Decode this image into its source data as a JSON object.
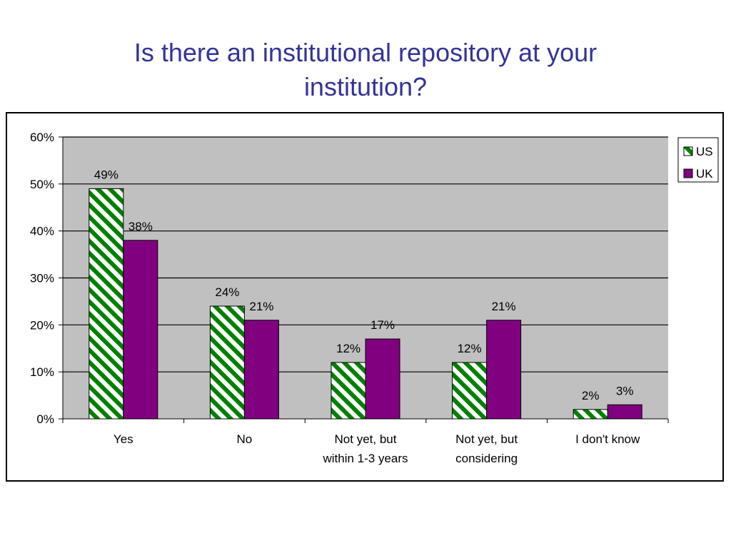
{
  "title_lines": [
    "Is there an institutional repository at your",
    "institution?"
  ],
  "chart_data": {
    "type": "bar",
    "title": "Is there an institutional repository at your institution?",
    "categories": [
      [
        "Yes"
      ],
      [
        "No"
      ],
      [
        "Not yet, but",
        "within 1-3 years"
      ],
      [
        "Not yet, but",
        "considering"
      ],
      [
        "I don't know"
      ]
    ],
    "series": [
      {
        "name": "US",
        "values": [
          49,
          24,
          12,
          12,
          2
        ],
        "labels": [
          "49%",
          "24%",
          "12%",
          "12%",
          "2%"
        ],
        "color": "#008000",
        "pattern": "diagonal-stripes"
      },
      {
        "name": "UK",
        "values": [
          38,
          21,
          17,
          21,
          3
        ],
        "labels": [
          "38%",
          "21%",
          "17%",
          "21%",
          "3%"
        ],
        "color": "#800080",
        "pattern": "solid"
      }
    ],
    "ylim": [
      0,
      60
    ],
    "yticks": [
      0,
      10,
      20,
      30,
      40,
      50,
      60
    ],
    "ytick_labels": [
      "0%",
      "10%",
      "20%",
      "30%",
      "40%",
      "50%",
      "60%"
    ],
    "grid": true,
    "plot_background": "#c0c0c0",
    "legend_position": "right"
  }
}
